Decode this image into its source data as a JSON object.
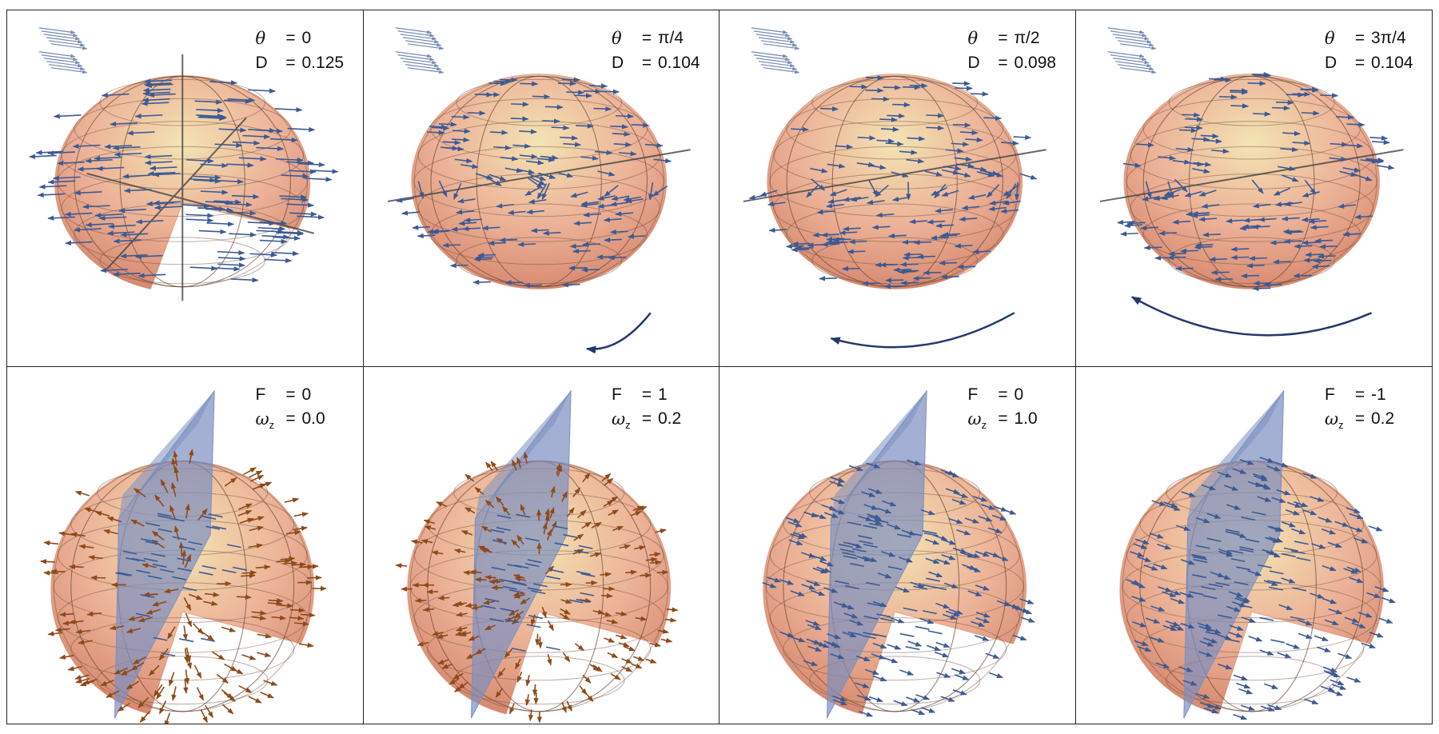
{
  "colors": {
    "sphere_top": "#f3e3b0",
    "sphere_mid": "#e9a586",
    "sphere_edge": "#d17a5e",
    "arrow_blue": "#3c5a94",
    "arrow_brown": "#8e4a1a",
    "plane_blue": "#7c8fc0",
    "rotation_arrow": "#24386e",
    "grid_line": "#6b4a3a",
    "border": "#222222"
  },
  "top_row": [
    {
      "theta_symbol": "θ",
      "theta_value": "0",
      "d_symbol": "D",
      "d_value": "0.125",
      "equals": "="
    },
    {
      "theta_symbol": "θ",
      "theta_value": "π/4",
      "d_symbol": "D",
      "d_value": "0.104",
      "equals": "="
    },
    {
      "theta_symbol": "θ",
      "theta_value": "π/2",
      "d_symbol": "D",
      "d_value": "0.098",
      "equals": "="
    },
    {
      "theta_symbol": "θ",
      "theta_value": "3π/4",
      "d_symbol": "D",
      "d_value": "0.104",
      "equals": "="
    }
  ],
  "bottom_row": [
    {
      "f_symbol": "F",
      "f_value": "0",
      "omega_symbol": "ω",
      "omega_sub": "z",
      "omega_value": "0.0",
      "equals": "="
    },
    {
      "f_symbol": "F",
      "f_value": "1",
      "omega_symbol": "ω",
      "omega_sub": "z",
      "omega_value": "0.2",
      "equals": "="
    },
    {
      "f_symbol": "F",
      "f_value": "0",
      "omega_symbol": "ω",
      "omega_sub": "z",
      "omega_value": "1.0",
      "equals": "="
    },
    {
      "f_symbol": "F",
      "f_value": "-1",
      "omega_symbol": "ω",
      "omega_sub": "z",
      "omega_value": "0.2",
      "equals": "="
    }
  ]
}
